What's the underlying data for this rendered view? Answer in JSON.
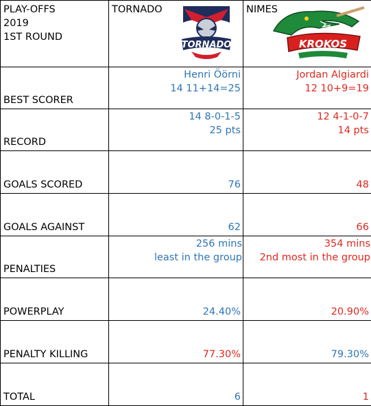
{
  "header": {
    "title_lines": [
      "PLAY-OFFS",
      "2019",
      "1ST ROUND"
    ],
    "team1": {
      "name": "TORNADO",
      "color": "#2e75b6",
      "logo_text": "TORNADO"
    },
    "team2": {
      "name": "NIMES",
      "color": "#e0271f",
      "logo_text": "KROKOS"
    }
  },
  "rows": [
    {
      "label": "BEST SCORER",
      "team1": [
        "Henri Öörni",
        "14 11+14=25"
      ],
      "team2": [
        "Jordan Algiardi",
        "12 10+9=19"
      ]
    },
    {
      "label": "RECORD",
      "team1": [
        "14 8-0-1-5",
        "25 pts"
      ],
      "team2": [
        "12 4-1-0-7",
        "14 pts"
      ]
    },
    {
      "label": "GOALS SCORED",
      "team1": [
        "76"
      ],
      "team2": [
        "48"
      ]
    },
    {
      "label": "GOALS AGAINST",
      "team1": [
        "62"
      ],
      "team2": [
        "66"
      ]
    },
    {
      "label": "PENALTIES",
      "team1": [
        "256 mins",
        "least in the group"
      ],
      "team2": [
        "354 mins",
        "2nd most in the group"
      ]
    },
    {
      "label": "POWERPLAY",
      "team1": [
        "24.40%"
      ],
      "team2": [
        "20.90%"
      ]
    },
    {
      "label": "PENALTY KILLING",
      "team1": [
        "77.30%"
      ],
      "team2": [
        "79.30%"
      ]
    },
    {
      "label": "TOTAL",
      "team1": [
        "6"
      ],
      "team2": [
        "1"
      ]
    }
  ],
  "highlight": {
    "penalty_killing_team1_color": "#e0271f",
    "penalty_killing_team2_color": "#2e75b6"
  }
}
